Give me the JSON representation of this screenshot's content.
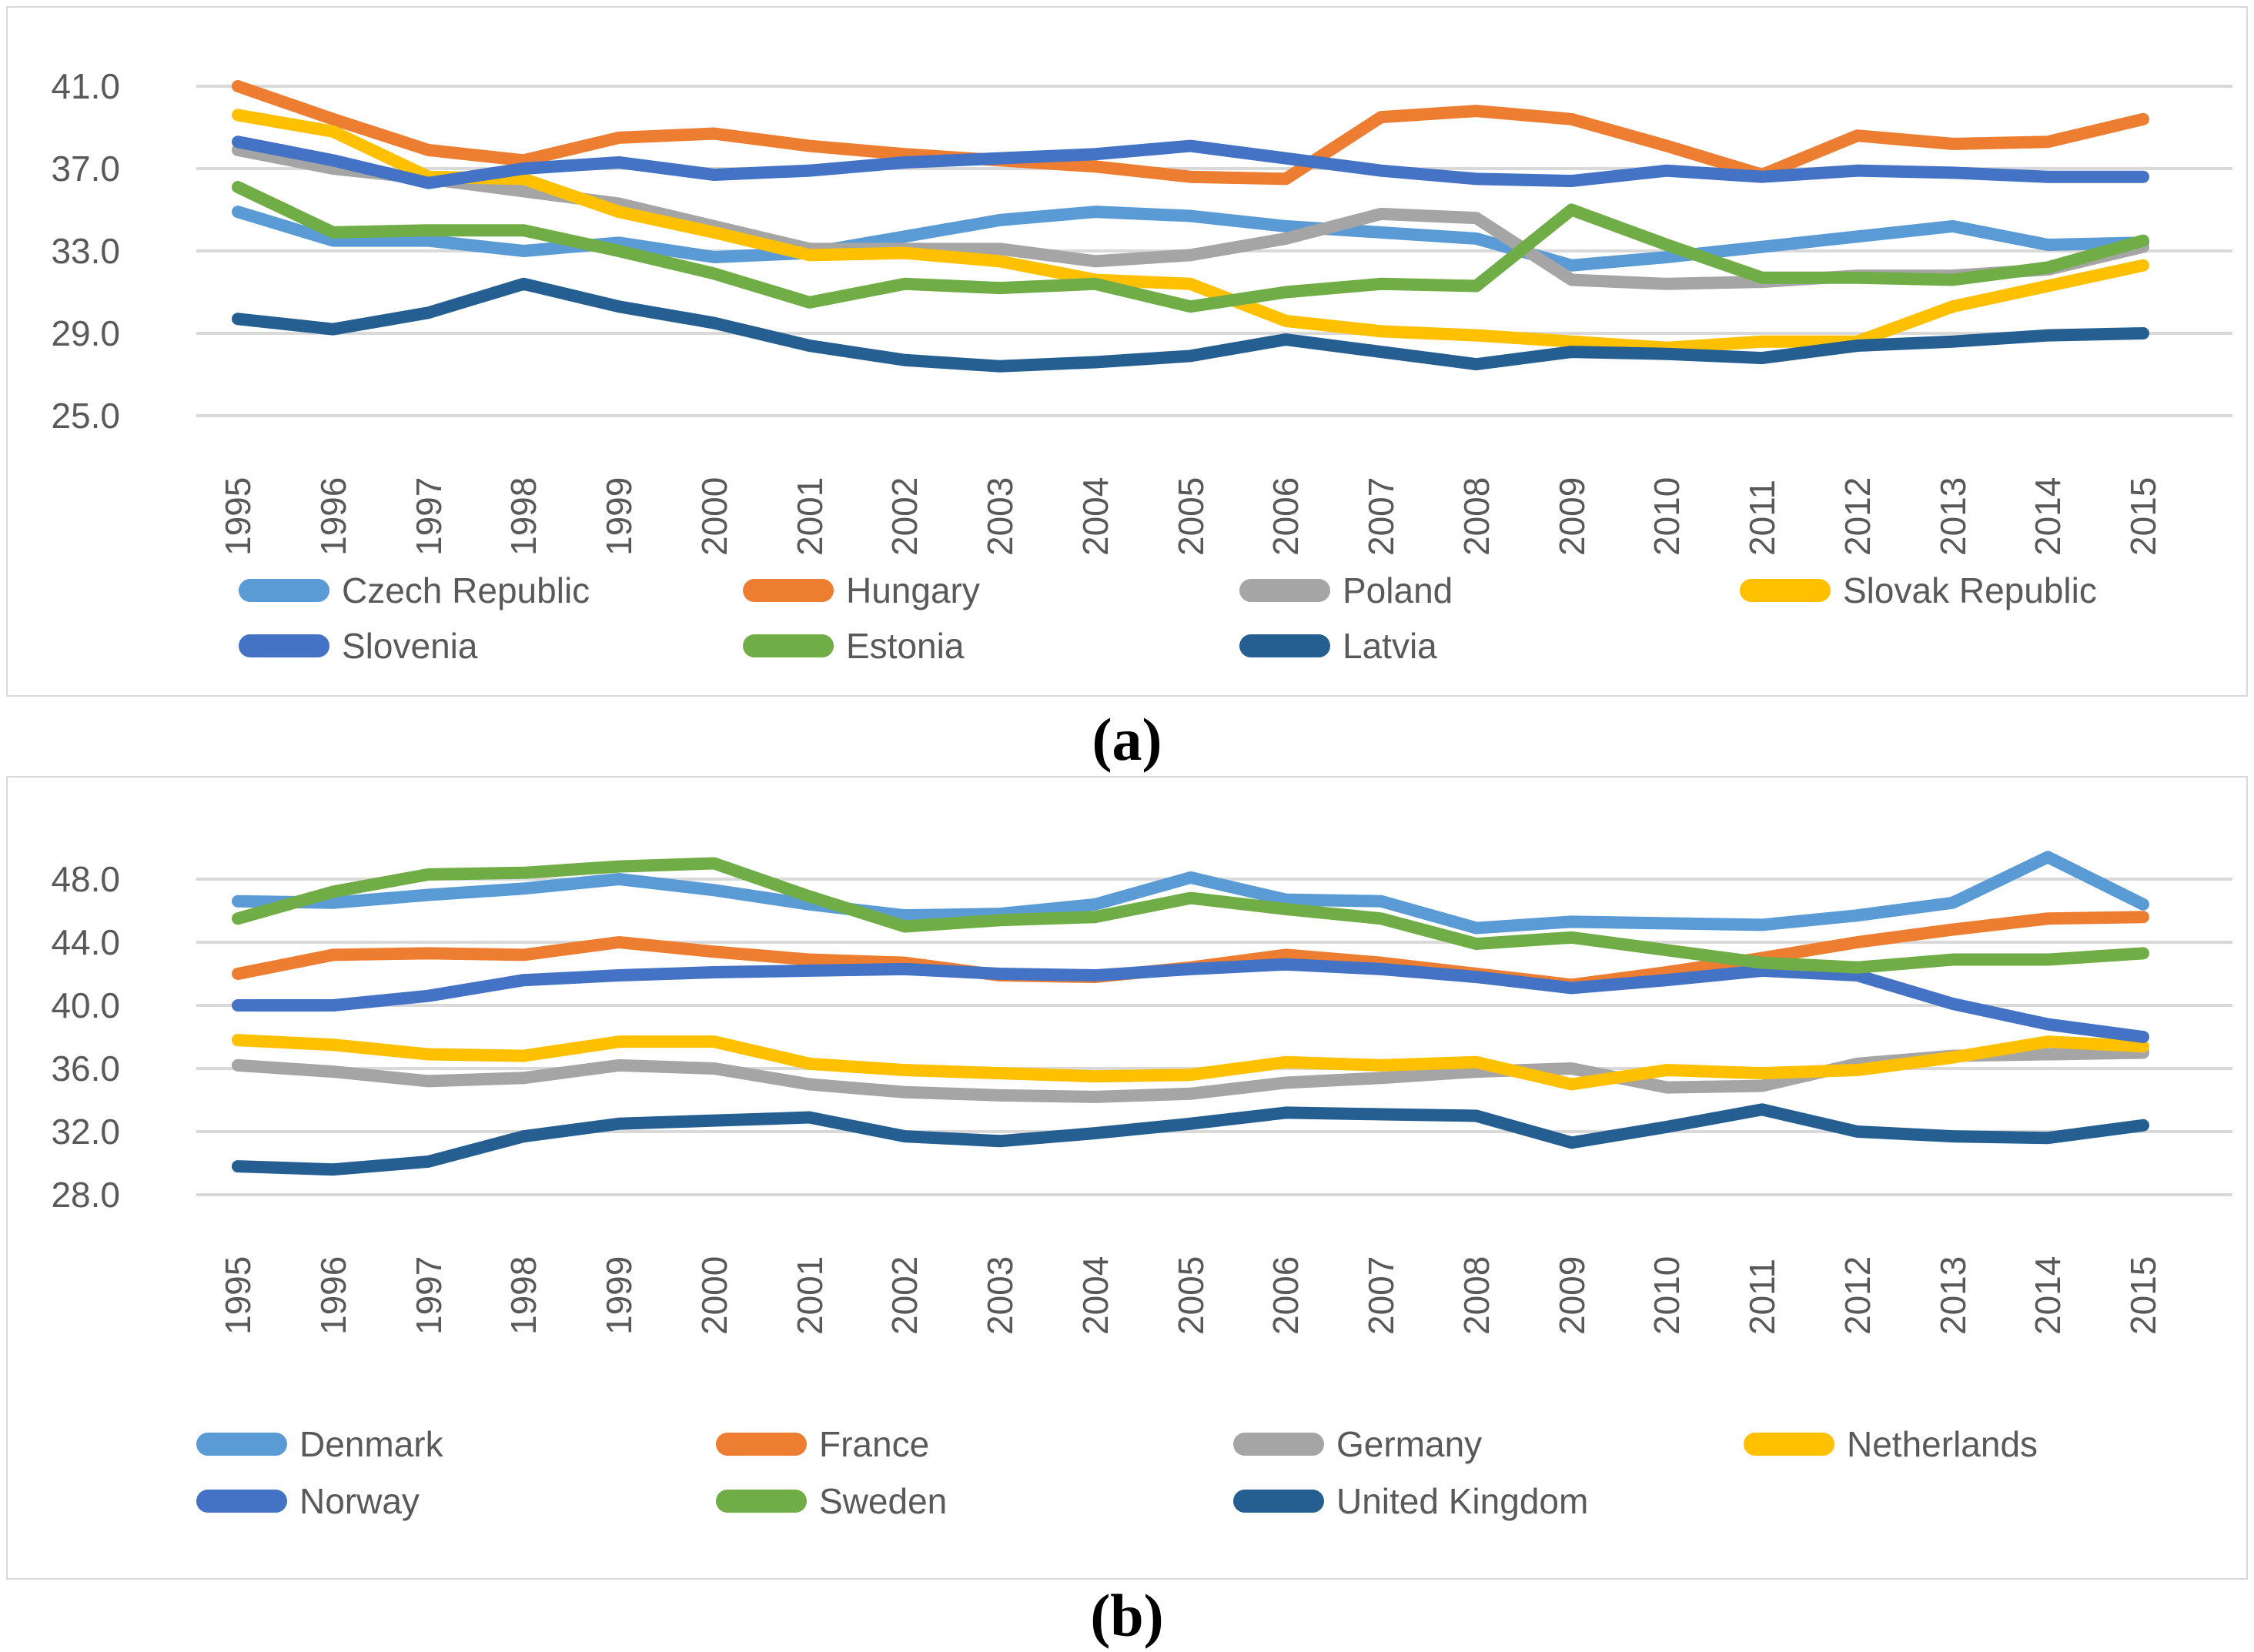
{
  "captions": {
    "a": "(a)",
    "b": "(b)"
  },
  "chart_data": [
    {
      "id": "a",
      "type": "line",
      "x": [
        1995,
        1996,
        1997,
        1998,
        1999,
        2000,
        2001,
        2002,
        2003,
        2004,
        2005,
        2006,
        2007,
        2008,
        2009,
        2010,
        2011,
        2012,
        2013,
        2014,
        2015
      ],
      "ylim": [
        25.0,
        41.0
      ],
      "yticks": [
        "41.0",
        "37.0",
        "33.0",
        "29.0",
        "25.0"
      ],
      "grid": true,
      "legend_position": "bottom",
      "series": [
        {
          "name": "Czech Republic",
          "color": "#5B9BD5",
          "values": [
            34.9,
            33.5,
            33.5,
            33.0,
            33.4,
            32.7,
            32.9,
            33.7,
            34.5,
            34.9,
            34.7,
            34.2,
            33.9,
            33.6,
            32.3,
            32.7,
            33.2,
            33.7,
            34.2,
            33.3,
            33.4
          ]
        },
        {
          "name": "Hungary",
          "color": "#ED7D31",
          "values": [
            41.0,
            39.4,
            37.9,
            37.4,
            38.5,
            38.7,
            38.1,
            37.7,
            37.4,
            37.1,
            36.6,
            36.5,
            39.5,
            39.8,
            39.4,
            38.1,
            36.7,
            38.6,
            38.2,
            38.3,
            39.4
          ]
        },
        {
          "name": "Poland",
          "color": "#A5A5A5",
          "values": [
            37.9,
            37.0,
            36.5,
            35.9,
            35.3,
            34.2,
            33.1,
            33.1,
            33.1,
            32.5,
            32.8,
            33.6,
            34.8,
            34.6,
            31.6,
            31.4,
            31.5,
            31.8,
            31.8,
            32.1,
            33.2
          ]
        },
        {
          "name": "Slovak Republic",
          "color": "#FFC000",
          "values": [
            39.6,
            38.8,
            36.6,
            36.5,
            34.9,
            33.9,
            32.8,
            32.9,
            32.5,
            31.6,
            31.4,
            29.6,
            29.1,
            28.9,
            28.6,
            28.3,
            28.6,
            28.6,
            30.3,
            31.3,
            32.3
          ]
        },
        {
          "name": "Slovenia",
          "color": "#4472C4",
          "values": [
            38.3,
            37.4,
            36.3,
            37.0,
            37.3,
            36.7,
            36.9,
            37.3,
            37.5,
            37.7,
            38.1,
            37.5,
            36.9,
            36.5,
            36.4,
            36.9,
            36.6,
            36.9,
            36.8,
            36.6,
            36.6
          ]
        },
        {
          "name": "Estonia",
          "color": "#70AD47",
          "values": [
            36.1,
            33.9,
            34.0,
            34.0,
            33.0,
            31.9,
            30.5,
            31.4,
            31.2,
            31.4,
            30.3,
            31.0,
            31.4,
            31.3,
            35.0,
            33.3,
            31.7,
            31.7,
            31.6,
            32.2,
            33.5
          ]
        },
        {
          "name": "Latvia",
          "color": "#255E91",
          "values": [
            29.7,
            29.2,
            30.0,
            31.4,
            30.3,
            29.5,
            28.4,
            27.7,
            27.4,
            27.6,
            27.9,
            28.7,
            28.1,
            27.5,
            28.1,
            28.0,
            27.8,
            28.4,
            28.6,
            28.9,
            29.0
          ]
        }
      ]
    },
    {
      "id": "b",
      "type": "line",
      "x": [
        1995,
        1996,
        1997,
        1998,
        1999,
        2000,
        2001,
        2002,
        2003,
        2004,
        2005,
        2006,
        2007,
        2008,
        2009,
        2010,
        2011,
        2012,
        2013,
        2014,
        2015
      ],
      "ylim": [
        28.0,
        48.0
      ],
      "yticks": [
        "48.0",
        "44.0",
        "40.0",
        "36.0",
        "32.0",
        "28.0"
      ],
      "grid": true,
      "legend_position": "bottom",
      "series": [
        {
          "name": "Denmark",
          "color": "#5B9BD5",
          "values": [
            46.6,
            46.5,
            47.0,
            47.4,
            48.0,
            47.3,
            46.4,
            45.7,
            45.8,
            46.4,
            48.1,
            46.7,
            46.6,
            44.9,
            45.3,
            45.2,
            45.1,
            45.7,
            46.5,
            49.4,
            46.4
          ]
        },
        {
          "name": "France",
          "color": "#ED7D31",
          "values": [
            42.0,
            43.2,
            43.3,
            43.2,
            44.0,
            43.4,
            42.9,
            42.7,
            41.9,
            41.8,
            42.4,
            43.2,
            42.7,
            42.0,
            41.3,
            42.1,
            43.0,
            44.0,
            44.8,
            45.5,
            45.6
          ]
        },
        {
          "name": "Germany",
          "color": "#A5A5A5",
          "values": [
            36.2,
            35.8,
            35.2,
            35.4,
            36.2,
            36.0,
            35.0,
            34.5,
            34.3,
            34.2,
            34.4,
            35.1,
            35.4,
            35.8,
            36.0,
            34.8,
            34.9,
            36.3,
            36.8,
            36.9,
            37.0
          ]
        },
        {
          "name": "Netherlands",
          "color": "#FFC000",
          "values": [
            37.8,
            37.5,
            36.9,
            36.8,
            37.7,
            37.7,
            36.3,
            35.9,
            35.7,
            35.5,
            35.6,
            36.4,
            36.2,
            36.4,
            35.0,
            35.9,
            35.7,
            35.9,
            36.7,
            37.7,
            37.4
          ]
        },
        {
          "name": "Norway",
          "color": "#4472C4",
          "values": [
            40.0,
            40.0,
            40.6,
            41.6,
            41.9,
            42.1,
            42.2,
            42.3,
            42.0,
            41.9,
            42.3,
            42.6,
            42.3,
            41.8,
            41.1,
            41.6,
            42.2,
            41.9,
            40.1,
            38.8,
            38.0
          ]
        },
        {
          "name": "Sweden",
          "color": "#70AD47",
          "values": [
            45.5,
            47.2,
            48.3,
            48.4,
            48.8,
            49.0,
            46.9,
            45.0,
            45.4,
            45.6,
            46.8,
            46.1,
            45.5,
            43.9,
            44.3,
            43.5,
            42.7,
            42.4,
            42.9,
            42.9,
            43.3
          ]
        },
        {
          "name": "United Kingdom",
          "color": "#255E91",
          "values": [
            29.8,
            29.6,
            30.1,
            31.7,
            32.5,
            32.7,
            32.9,
            31.7,
            31.4,
            31.9,
            32.5,
            33.2,
            33.1,
            33.0,
            31.3,
            32.3,
            33.4,
            32.0,
            31.7,
            31.6,
            32.4
          ]
        }
      ]
    }
  ],
  "style": {
    "gridline_color": "#D9D9D9",
    "tick_color": "#595959",
    "panel_border_color": "#D9D9D9"
  }
}
